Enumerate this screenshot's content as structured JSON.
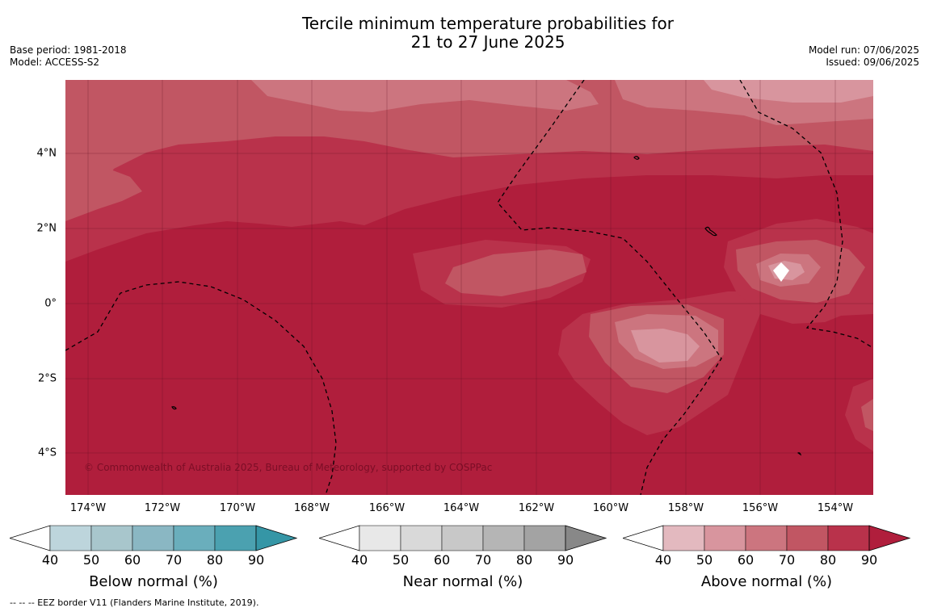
{
  "title_line1": "Tercile minimum temperature probabilities for",
  "title_line2": "21 to 27 June 2025",
  "base_period": "Base period: 1981-2018",
  "model": "Model: ACCESS-S2",
  "model_run": "Model run: 07/06/2025",
  "issued": "Issued: 09/06/2025",
  "lon_labels": [
    "174°W",
    "172°W",
    "170°W",
    "168°W",
    "166°W",
    "164°W",
    "162°W",
    "160°W",
    "158°W",
    "156°W",
    "154°W"
  ],
  "lat_labels": [
    "4°N",
    "2°N",
    "0°",
    "2°S",
    "4°S"
  ],
  "credit": "© Commonwealth of Australia 2025, Bureau of Meteorology, supported by COSPPac",
  "colorbars": [
    {
      "label": "Below normal (%)",
      "ticks": [
        "40",
        "50",
        "60",
        "70",
        "80",
        "90"
      ],
      "colors": [
        "#bdd5dc",
        "#a8c6cc",
        "#8ab7c3",
        "#6aaebc",
        "#4ba1b0",
        "#3596a6"
      ]
    },
    {
      "label": "Near normal (%)",
      "ticks": [
        "40",
        "50",
        "60",
        "70",
        "80",
        "90"
      ],
      "colors": [
        "#e8e8e8",
        "#d9d9d9",
        "#c8c8c8",
        "#b5b5b5",
        "#a3a3a3",
        "#888888"
      ]
    },
    {
      "label": "Above normal (%)",
      "ticks": [
        "40",
        "50",
        "60",
        "70",
        "80",
        "90"
      ],
      "colors": [
        "#e3b9bf",
        "#d8959e",
        "#cc757f",
        "#c15663",
        "#b9324b",
        "#b01e3c"
      ]
    }
  ],
  "footer": "--  --  -- EEZ border V11 (Flanders Marine Institute, 2019).",
  "map_colors": {
    "base": "#b01e3c",
    "l80": "#b9324b",
    "l70": "#c15663",
    "l60": "#cc757f",
    "l50": "#d8959e",
    "l40": "#ffffff"
  }
}
